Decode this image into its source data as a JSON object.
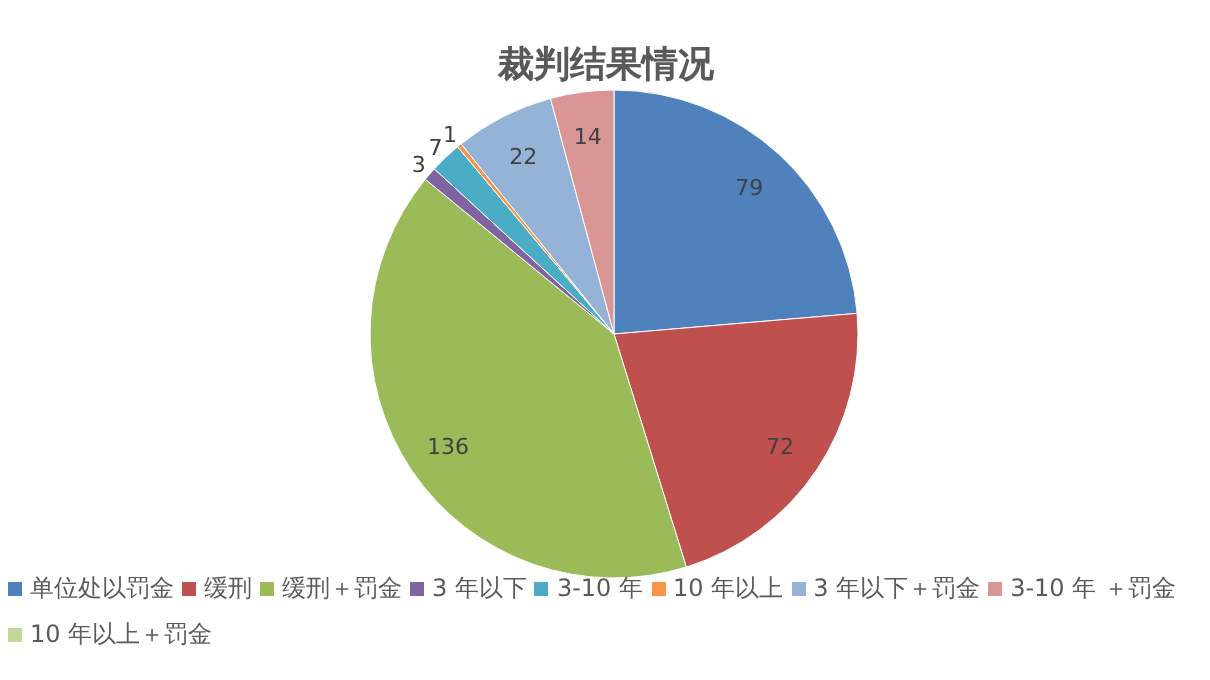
{
  "chart_data": {
    "type": "pie",
    "title": "裁判结果情况",
    "categories": [
      "单位处以罚金",
      "缓刑",
      "缓刑＋罚金",
      "3 年以下",
      "3-10 年",
      "10 年以上",
      "3 年以下＋罚金",
      "3-10 年 ＋罚金",
      "10 年以上＋罚金"
    ],
    "values": [
      79,
      72,
      136,
      3,
      7,
      1,
      22,
      14,
      0
    ],
    "value_labels": [
      "79",
      "72",
      "136",
      "3",
      "7",
      "1",
      "22",
      "14",
      null
    ],
    "colors": [
      "#4f81bd",
      "#c0504d",
      "#9bbb59",
      "#8064a2",
      "#4bacc6",
      "#f79646",
      "#95b3d7",
      "#d99694",
      "#c3d69b"
    ],
    "legend": "bottom"
  }
}
